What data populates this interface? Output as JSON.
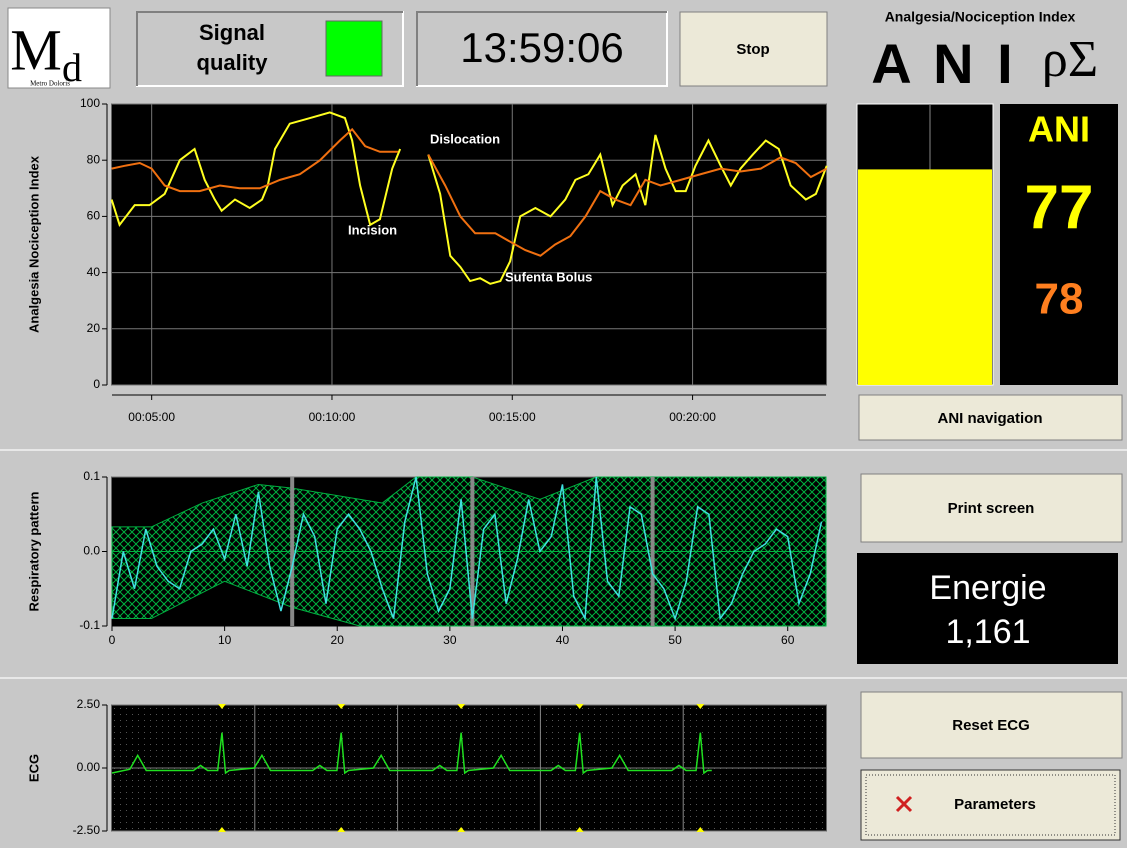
{
  "logo": {
    "mark_main": "M",
    "mark_sub": "d",
    "name": "Metro Doloris"
  },
  "signal": {
    "label_lines": [
      "Signal",
      "quality"
    ],
    "color": "#00ff00"
  },
  "clock": "13:59:06",
  "buttons": {
    "stop": "Stop",
    "ani_navigation": "ANI navigation",
    "print_screen": "Print screen",
    "reset_ecg": "Reset ECG",
    "parameters": "Parameters"
  },
  "ani_panel": {
    "title": "Analgesia/Nociception Index",
    "big": "A N I",
    "symbol": "ρΣ",
    "label": "ANI",
    "instant": 77,
    "mean": 78,
    "ylim": [
      0,
      100
    ],
    "bar_color": "#ffff00",
    "instant_color": "#ffff00",
    "mean_color": "#ff7f1f"
  },
  "energie": {
    "label": "Energie",
    "value": "1,161"
  },
  "chart_data": [
    {
      "type": "line",
      "ylabel": "Analgesia Nociception Index",
      "xlim": [
        3.9,
        23.7
      ],
      "ylim": [
        0,
        100
      ],
      "yticks": [
        0,
        20,
        40,
        60,
        80,
        100
      ],
      "xticks": [
        {
          "value": 5,
          "label": "00:05:00"
        },
        {
          "value": 10,
          "label": "00:10:00"
        },
        {
          "value": 15,
          "label": "00:15:00"
        },
        {
          "value": 20,
          "label": "00:20:00"
        }
      ],
      "grid": "both",
      "annotations": [
        "Dislocation",
        "Incision",
        "Sufenta Bolus"
      ],
      "series": [
        {
          "color": "#ffff20",
          "x": [
            3.89,
            4.11,
            4.53,
            4.94,
            5.36,
            5.78,
            6.19,
            6.47,
            6.75,
            6.94,
            7.31,
            7.72,
            8.06,
            8.22,
            8.42,
            8.83,
            9.39,
            9.94,
            10.36,
            10.56,
            10.78,
            11.06,
            11.33,
            11.67,
            11.89,
            12.3,
            12.67,
            13.0,
            13.28,
            13.56,
            13.83,
            14.11,
            14.39,
            14.67,
            14.94,
            15.22,
            15.64,
            16.06,
            16.47,
            16.75,
            17.11,
            17.44,
            17.78,
            18.06,
            18.42,
            18.69,
            18.97,
            19.25,
            19.53,
            19.81,
            20.08,
            20.44,
            20.78,
            21.06,
            21.33,
            21.67,
            22.03,
            22.39,
            22.72,
            23.14,
            23.42,
            23.72
          ],
          "values": [
            66,
            57,
            64,
            64,
            68,
            80,
            84,
            73,
            66,
            62,
            66,
            63,
            66,
            71,
            84,
            93,
            95,
            97,
            95,
            87,
            71,
            57,
            59,
            77,
            84,
            null,
            82,
            68,
            46,
            42,
            37,
            38,
            36,
            37,
            44,
            60,
            63,
            60,
            66,
            73,
            75,
            82,
            64,
            71,
            75,
            64,
            89,
            77,
            69,
            69,
            78,
            87,
            78,
            71,
            77,
            82,
            87,
            84,
            71,
            66,
            68,
            78
          ]
        },
        {
          "color": "#f07010",
          "x": [
            3.89,
            4.25,
            4.67,
            5.0,
            5.36,
            5.78,
            6.33,
            6.89,
            7.44,
            8.0,
            8.56,
            9.11,
            9.67,
            10.22,
            10.56,
            10.92,
            11.33,
            11.83,
            12.3,
            12.67,
            13.14,
            13.56,
            13.97,
            14.53,
            14.94,
            15.36,
            15.78,
            16.19,
            16.61,
            17.03,
            17.44,
            17.86,
            18.28,
            18.69,
            19.11,
            19.67,
            20.22,
            20.78,
            21.33,
            21.89,
            22.44,
            22.86,
            23.28,
            23.72
          ],
          "values": [
            77,
            78,
            79,
            77,
            71,
            69,
            69,
            71,
            70,
            70,
            73,
            75,
            80,
            87,
            91,
            85,
            83,
            83,
            null,
            82,
            71,
            60,
            54,
            54,
            51,
            48,
            46,
            50,
            53,
            60,
            69,
            66,
            64,
            73,
            71,
            73,
            75,
            77,
            76,
            77,
            81,
            79,
            74,
            77
          ]
        }
      ]
    },
    {
      "type": "line",
      "ylabel": "Respiratory pattern",
      "xlim": [
        0,
        63.4
      ],
      "ylim": [
        -0.1,
        0.1
      ],
      "yticks": [
        -0.1,
        {
          "value": 0,
          "label": "0.0"
        },
        0.1
      ],
      "xticks": [
        0,
        10,
        20,
        30,
        40,
        50,
        60
      ],
      "grid": "y",
      "markers": [
        16,
        32,
        48
      ],
      "envelope": {
        "color": "#00b040",
        "upper": {
          "x": [
            0,
            3.5,
            8,
            13,
            16,
            24,
            27,
            32,
            38,
            43,
            48,
            63.4
          ],
          "values": [
            0.033,
            0.033,
            0.065,
            0.09,
            0.085,
            0.065,
            0.1,
            0.1,
            0.07,
            0.1,
            0.1,
            0.1
          ]
        },
        "lower": {
          "x": [
            0,
            3.5,
            10,
            16,
            22,
            28,
            63.4
          ],
          "values": [
            -0.09,
            -0.09,
            -0.04,
            -0.075,
            -0.1,
            -0.1,
            -0.1
          ]
        }
      },
      "series": [
        {
          "color": "#40e0e0",
          "x": [
            0,
            1,
            2,
            3,
            4,
            5,
            6,
            7,
            8,
            9,
            10,
            11,
            12,
            13,
            14,
            15,
            16,
            17,
            18,
            19,
            20,
            21,
            22,
            23,
            24,
            25,
            26,
            27,
            28,
            29,
            30,
            31,
            32,
            33,
            34,
            35,
            36,
            37,
            38,
            39,
            40,
            41,
            42,
            43,
            44,
            45,
            46,
            47,
            48,
            49,
            50,
            51,
            52,
            53,
            54,
            55,
            56,
            57,
            58,
            59,
            60,
            61,
            62,
            63
          ],
          "values": [
            -0.09,
            0,
            -0.05,
            0.03,
            -0.02,
            -0.04,
            -0.05,
            0,
            0.01,
            0.03,
            -0.01,
            0.05,
            -0.02,
            0.08,
            -0.02,
            -0.08,
            -0.02,
            0.05,
            0.02,
            -0.07,
            0.03,
            0.05,
            0.03,
            0,
            -0.05,
            -0.09,
            0.04,
            0.1,
            -0.03,
            -0.08,
            -0.05,
            0.07,
            -0.09,
            0.03,
            0.05,
            -0.07,
            -0.01,
            0.07,
            0,
            0.02,
            0.09,
            -0.06,
            -0.09,
            0.1,
            -0.04,
            -0.06,
            0.06,
            0.05,
            -0.03,
            -0.05,
            -0.09,
            -0.04,
            0.06,
            0.05,
            -0.09,
            -0.07,
            -0.03,
            0,
            0.01,
            0.03,
            0.02,
            -0.07,
            -0.03,
            0.04
          ]
        }
      ]
    },
    {
      "type": "line",
      "ylabel": "ECG",
      "xlim": [
        0,
        100
      ],
      "ylim": [
        -2.5,
        2.5
      ],
      "yticks": [
        {
          "value": -2.5,
          "label": "-2.50"
        },
        {
          "value": 0,
          "label": "0.00"
        },
        {
          "value": 2.5,
          "label": "2.50"
        }
      ],
      "grid": "y",
      "xgrid": [
        20,
        40,
        60,
        80
      ],
      "r_peaks": [
        15.4,
        32.1,
        48.9,
        65.5,
        82.4
      ],
      "series": [
        {
          "color": "#20e020",
          "x": [
            0,
            2.5,
            3.6,
            4.8,
            11.4,
            12.4,
            13.4,
            14.8,
            15.4,
            15.9,
            16.4,
            19.9,
            21.0,
            22.2,
            28.1,
            29.1,
            30.1,
            31.5,
            32.1,
            32.6,
            33.1,
            36.6,
            37.7,
            38.9,
            44.9,
            45.9,
            46.9,
            48.3,
            48.9,
            49.4,
            49.9,
            53.4,
            54.5,
            55.7,
            61.5,
            62.5,
            63.5,
            64.9,
            65.5,
            66.0,
            66.5,
            70.0,
            71.1,
            72.3,
            78.4,
            79.4,
            80.4,
            81.8,
            82.4,
            82.9,
            83.4,
            84.0
          ],
          "values": [
            -0.2,
            -0.05,
            0.5,
            -0.1,
            -0.1,
            0.1,
            -0.1,
            -0.1,
            1.4,
            -0.2,
            -0.1,
            0,
            0.5,
            -0.1,
            -0.1,
            0.1,
            -0.1,
            -0.1,
            1.4,
            -0.2,
            -0.1,
            0,
            0.5,
            -0.1,
            -0.1,
            0.1,
            -0.1,
            -0.1,
            1.4,
            -0.2,
            -0.1,
            0,
            0.5,
            -0.1,
            -0.1,
            0.1,
            -0.1,
            -0.1,
            1.4,
            -0.2,
            -0.1,
            0,
            0.5,
            -0.1,
            -0.1,
            0.1,
            -0.1,
            -0.1,
            1.4,
            -0.2,
            -0.1,
            -0.1
          ]
        }
      ]
    }
  ]
}
